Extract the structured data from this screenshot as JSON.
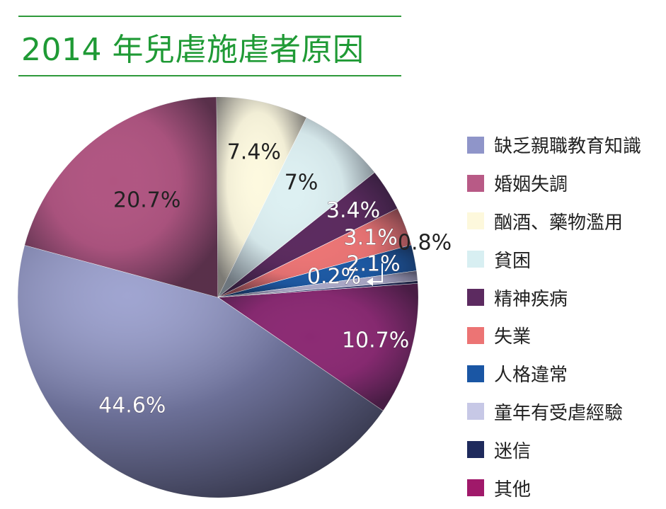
{
  "title": "2014 年兒虐施虐者原因",
  "chart_data": {
    "type": "pie",
    "title": "2014 年兒虐施虐者原因",
    "slices": [
      {
        "name": "缺乏親職教育知識",
        "value": 44.6,
        "label": "44.6%",
        "color": "#8f95c9",
        "swatch": "#8f95c9"
      },
      {
        "name": "婚姻失調",
        "value": 20.7,
        "label": "20.7%",
        "color": "#b05581",
        "swatch": "#b85a86"
      },
      {
        "name": "酗酒、藥物濫用",
        "value": 7.4,
        "label": "7.4%",
        "color": "#fdf9df",
        "swatch": "#fdf8dc"
      },
      {
        "name": "貧困",
        "value": 7.0,
        "label": "7%",
        "color": "#ddf0f2",
        "swatch": "#d8eff2"
      },
      {
        "name": "精神疾病",
        "value": 3.4,
        "label": "3.4%",
        "color": "#5b2a5e",
        "swatch": "#5c2a60"
      },
      {
        "name": "失業",
        "value": 3.1,
        "label": "3.1%",
        "color": "#ec7474",
        "swatch": "#ec7474"
      },
      {
        "name": "人格違常",
        "value": 2.1,
        "label": "2.1%",
        "color": "#1b58a3",
        "swatch": "#1a56a4"
      },
      {
        "name": "童年有受虐經驗",
        "value": 0.8,
        "label": "0.8%",
        "color": "#a9a7c6",
        "swatch": "#c7c8e6"
      },
      {
        "name": "迷信",
        "value": 0.2,
        "label": "0.2%",
        "color": "#253063",
        "swatch": "#1e2a5c"
      },
      {
        "name": "其他",
        "value": 10.7,
        "label": "10.7%",
        "color": "#8b2a73",
        "swatch": "#a0196a"
      }
    ],
    "pie_order": [
      "其他",
      "缺乏親職教育知識",
      "婚姻失調",
      "酗酒、藥物濫用",
      "貧困",
      "精神疾病",
      "失業",
      "人格違常",
      "童年有受虐經驗",
      "迷信"
    ],
    "legend_position": "right"
  }
}
